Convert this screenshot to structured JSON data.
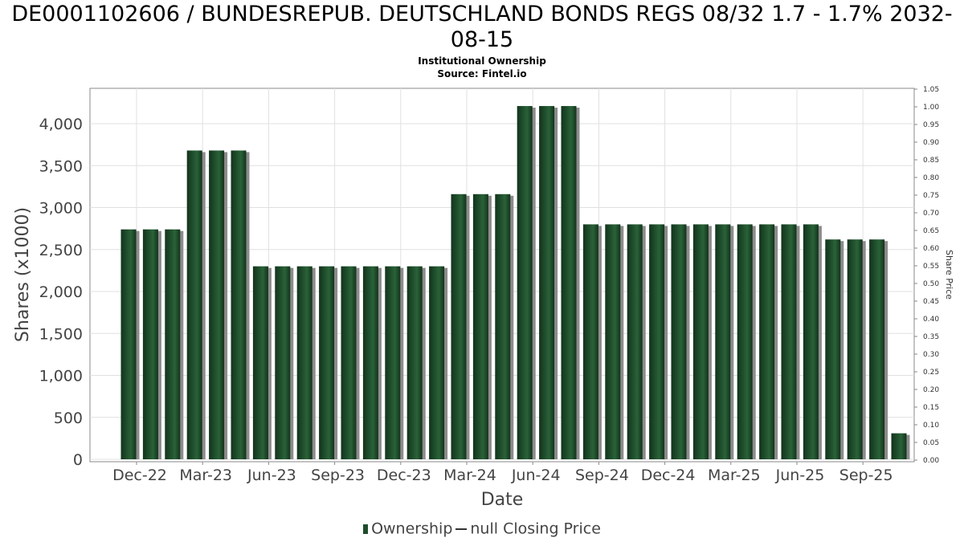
{
  "title": "DE0001102606 / BUNDESREPUB. DEUTSCHLAND BONDS REGS 08/32 1.7 - 1.7% 2032-08-15",
  "subtitle_line1": "Institutional Ownership",
  "subtitle_line2": "Source: Fintel.io",
  "colors": {
    "bar": "#1e4d2b",
    "bar_dark": "#13331c",
    "shadow": "#8c8c8c",
    "grid": "#e0e0e0"
  },
  "chart_data": {
    "type": "bar",
    "xlabel": "Date",
    "ylabel": "Shares (x1000)",
    "ylabel_right": "Share Price",
    "ylim": [
      0,
      4400
    ],
    "ylim_right": [
      0,
      1.05
    ],
    "y_ticks": [
      "0",
      "500",
      "1,000",
      "1,500",
      "2,000",
      "2,500",
      "3,000",
      "3,500",
      "4,000"
    ],
    "y_tick_values": [
      0,
      500,
      1000,
      1500,
      2000,
      2500,
      3000,
      3500,
      4000
    ],
    "y_right_ticks": [
      "0.00",
      "0.05",
      "0.10",
      "0.15",
      "0.20",
      "0.25",
      "0.30",
      "0.35",
      "0.40",
      "0.45",
      "0.50",
      "0.55",
      "0.60",
      "0.65",
      "0.70",
      "0.75",
      "0.80",
      "0.85",
      "0.90",
      "0.95",
      "1.00",
      "1.05"
    ],
    "x_tick_labels": [
      "Dec-22",
      "Mar-23",
      "Jun-23",
      "Sep-23",
      "Dec-23",
      "Mar-24",
      "Jun-24",
      "Sep-24",
      "Dec-24",
      "Mar-25",
      "Jun-25",
      "Sep-25"
    ],
    "grid": true,
    "legend": [
      "Ownership",
      "null Closing Price"
    ],
    "legend_position": "bottom",
    "series": [
      {
        "name": "Ownership",
        "values": [
          2740,
          2740,
          2740,
          3680,
          3680,
          3680,
          2300,
          2300,
          2300,
          2300,
          2300,
          2300,
          2300,
          2300,
          2300,
          3160,
          3160,
          3160,
          4210,
          4210,
          4210,
          2800,
          2800,
          2800,
          2800,
          2800,
          2800,
          2800,
          2800,
          2800,
          2800,
          2800,
          2620,
          2620,
          2620,
          310
        ]
      }
    ]
  }
}
